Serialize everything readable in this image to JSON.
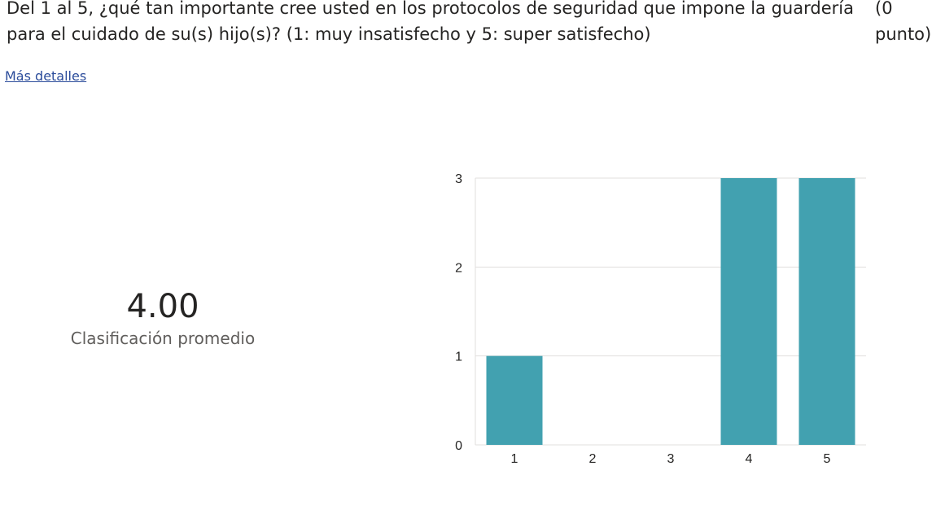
{
  "question": {
    "text": "Del 1 al 5, ¿qué tan importante cree usted en los protocolos de seguridad que impone la guardería para el cuidado de su(s) hijo(s)? (1: muy insatisfecho y 5: super satisfecho)",
    "points": "(0 punto)"
  },
  "more_details_label": "Más detalles",
  "summary": {
    "average_value": "4.00",
    "average_label": "Clasificación promedio"
  },
  "colors": {
    "bar": "#42a1b0",
    "grid": "#e1dfdd",
    "link": "#2b4c9b"
  },
  "chart_data": {
    "type": "bar",
    "categories": [
      "1",
      "2",
      "3",
      "4",
      "5"
    ],
    "values": [
      1,
      0,
      0,
      3,
      3
    ],
    "yticks": [
      0,
      1,
      2,
      3
    ],
    "ylim": [
      0,
      3
    ],
    "grid": true,
    "title": "",
    "xlabel": "",
    "ylabel": ""
  }
}
